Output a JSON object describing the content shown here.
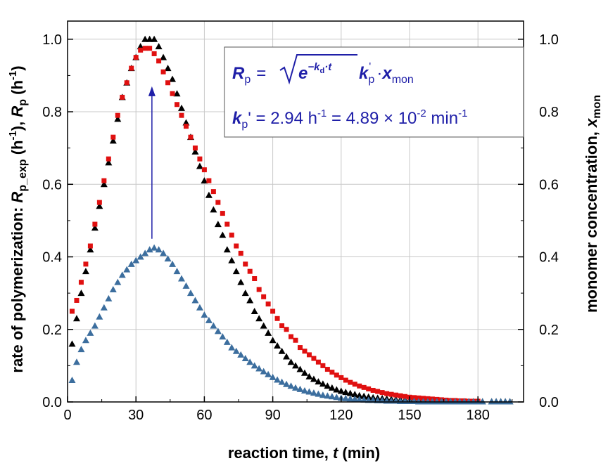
{
  "chart_data": {
    "type": "scatter",
    "title": "",
    "xlabel": "reaction time, t (min)",
    "ylabel_left": "rate of polymerization: R_p_exp (h^-1), R_p (h^-1)",
    "ylabel_right": "monomer concentration, x_mon",
    "xlim": [
      0,
      200
    ],
    "ylim": [
      0,
      1.05
    ],
    "y2lim": [
      0,
      1.05
    ],
    "xticks": [
      "0",
      "30",
      "60",
      "90",
      "120",
      "150",
      "180"
    ],
    "yticks": [
      "0.0",
      "0.2",
      "0.4",
      "0.6",
      "0.8",
      "1.0"
    ],
    "y2ticks": [
      "0.0",
      "0.2",
      "0.4",
      "0.6",
      "0.8",
      "1.0"
    ],
    "grid": true,
    "xlabel_parts": {
      "pre": "reaction time, ",
      "var": "t",
      "post": " (min)"
    },
    "ylabel_left_parts": {
      "pre": "rate of polymerization: ",
      "var1": "R",
      "sub1": "p_exp",
      "mid": " (h",
      "exp": "-1",
      "mid2": "), ",
      "var2": "R",
      "sub2": "p",
      "post": " (h",
      "post_exp": "-1",
      "end": ")"
    },
    "ylabel_right_parts": {
      "pre": "monomer concentration, ",
      "var": "x",
      "sub": "mon"
    },
    "annotation": {
      "eq1": {
        "lhs": "R",
        "lhs_sub": "p",
        "equals": "=",
        "exp_base": "e",
        "exp_sup": "−k",
        "exp_sup_sub": "d",
        "exp_sup_tail": "·t",
        "k": "k",
        "k_sub": "p",
        "k_prime": "'",
        "dot": "·",
        "x": "x",
        "x_sub": "mon"
      },
      "eq2": {
        "k": "k",
        "k_sub": "p",
        "text1": "' = 2.94 h",
        "sup1": "-1",
        "text2": " = 4.89 × 10",
        "sup2": "-2",
        "text3": " min",
        "sup3": "-1"
      }
    },
    "arrow": {
      "x": 37,
      "from_y": 0.45,
      "to_y": 0.87,
      "color": "#1f1fa8"
    },
    "series": [
      {
        "marker": "triangle",
        "color": "#000000",
        "axis": "left",
        "x": [
          2,
          4,
          6,
          8,
          10,
          12,
          14,
          16,
          18,
          20,
          22,
          24,
          26,
          28,
          30,
          32,
          34,
          36,
          38,
          40,
          42,
          44,
          46,
          48,
          50,
          52,
          54,
          56,
          58,
          60,
          62,
          64,
          66,
          68,
          70,
          72,
          74,
          76,
          78,
          80,
          82,
          84,
          86,
          88,
          90,
          92,
          94,
          96,
          98,
          100,
          102,
          104,
          106,
          108,
          110,
          112,
          114,
          116,
          118,
          120,
          122,
          124,
          126,
          128,
          130,
          132,
          134,
          136,
          138,
          140,
          142,
          144,
          146,
          148,
          150,
          152,
          154,
          156,
          158,
          160,
          162,
          164,
          166,
          168,
          170,
          172,
          174,
          176,
          178,
          180,
          182,
          186,
          188,
          190,
          192,
          194
        ],
        "y": [
          0.16,
          0.23,
          0.3,
          0.36,
          0.42,
          0.48,
          0.54,
          0.6,
          0.66,
          0.72,
          0.78,
          0.84,
          0.88,
          0.92,
          0.95,
          0.98,
          1.0,
          1.0,
          1.0,
          0.98,
          0.95,
          0.92,
          0.89,
          0.85,
          0.81,
          0.77,
          0.73,
          0.69,
          0.65,
          0.61,
          0.57,
          0.53,
          0.49,
          0.46,
          0.42,
          0.39,
          0.36,
          0.33,
          0.3,
          0.28,
          0.25,
          0.23,
          0.21,
          0.19,
          0.17,
          0.155,
          0.14,
          0.125,
          0.11,
          0.1,
          0.09,
          0.08,
          0.07,
          0.063,
          0.056,
          0.05,
          0.044,
          0.039,
          0.034,
          0.03,
          0.027,
          0.024,
          0.021,
          0.018,
          0.016,
          0.014,
          0.012,
          0.011,
          0.01,
          0.009,
          0.008,
          0.007,
          0.006,
          0.005,
          0.005,
          0.004,
          0.004,
          0.003,
          0.003,
          0.003,
          0.002,
          0.002,
          0.002,
          0.002,
          0.001,
          0.001,
          0.001,
          0.001,
          0.001,
          0.001,
          0.001,
          0.001,
          0.001,
          0.001,
          0.001,
          0.001
        ]
      },
      {
        "marker": "square",
        "color": "#e01010",
        "axis": "left",
        "x": [
          2,
          4,
          6,
          8,
          10,
          12,
          14,
          16,
          18,
          20,
          22,
          24,
          26,
          28,
          30,
          32,
          34,
          36,
          38,
          40,
          42,
          44,
          46,
          48,
          50,
          52,
          54,
          56,
          58,
          60,
          62,
          64,
          66,
          68,
          70,
          72,
          74,
          76,
          78,
          80,
          82,
          84,
          86,
          88,
          90,
          92,
          94,
          96,
          98,
          100,
          102,
          104,
          106,
          108,
          110,
          112,
          114,
          116,
          118,
          120,
          122,
          124,
          126,
          128,
          130,
          132,
          134,
          136,
          138,
          140,
          142,
          144,
          146,
          148,
          150,
          152,
          154,
          156,
          158,
          160,
          162,
          164,
          166,
          168,
          170,
          172,
          174,
          176,
          178,
          180
        ],
        "y": [
          0.25,
          0.28,
          0.33,
          0.38,
          0.43,
          0.49,
          0.55,
          0.61,
          0.67,
          0.73,
          0.79,
          0.84,
          0.88,
          0.92,
          0.95,
          0.97,
          0.975,
          0.975,
          0.96,
          0.94,
          0.91,
          0.88,
          0.85,
          0.82,
          0.79,
          0.76,
          0.73,
          0.7,
          0.67,
          0.64,
          0.61,
          0.58,
          0.55,
          0.52,
          0.49,
          0.46,
          0.43,
          0.41,
          0.38,
          0.36,
          0.34,
          0.31,
          0.29,
          0.27,
          0.25,
          0.23,
          0.21,
          0.2,
          0.18,
          0.17,
          0.15,
          0.14,
          0.13,
          0.12,
          0.11,
          0.1,
          0.09,
          0.082,
          0.074,
          0.067,
          0.06,
          0.054,
          0.049,
          0.044,
          0.04,
          0.036,
          0.032,
          0.029,
          0.026,
          0.023,
          0.021,
          0.019,
          0.017,
          0.015,
          0.013,
          0.012,
          0.011,
          0.01,
          0.009,
          0.008,
          0.007,
          0.006,
          0.005,
          0.004,
          0.004,
          0.003,
          0.003,
          0.002,
          0.002,
          0.002
        ]
      },
      {
        "marker": "triangle",
        "color": "#3c6e9e",
        "axis": "left",
        "x": [
          2,
          4,
          6,
          8,
          10,
          12,
          14,
          16,
          18,
          20,
          22,
          24,
          26,
          28,
          30,
          32,
          34,
          36,
          38,
          40,
          42,
          44,
          46,
          48,
          50,
          52,
          54,
          56,
          58,
          60,
          62,
          64,
          66,
          68,
          70,
          72,
          74,
          76,
          78,
          80,
          82,
          84,
          86,
          88,
          90,
          92,
          94,
          96,
          98,
          100,
          102,
          104,
          106,
          108,
          110,
          112,
          114,
          116,
          118,
          120,
          122,
          124,
          126,
          128,
          130,
          132,
          134,
          136,
          138,
          140,
          142,
          144,
          146,
          148,
          150,
          152,
          154,
          156,
          158,
          160,
          162,
          164,
          166,
          168,
          170,
          172,
          174,
          176,
          178,
          180,
          182,
          186,
          188,
          190,
          192,
          194
        ],
        "y": [
          0.06,
          0.11,
          0.145,
          0.17,
          0.19,
          0.21,
          0.235,
          0.26,
          0.285,
          0.31,
          0.33,
          0.35,
          0.365,
          0.38,
          0.39,
          0.4,
          0.41,
          0.42,
          0.425,
          0.42,
          0.41,
          0.395,
          0.38,
          0.36,
          0.34,
          0.32,
          0.3,
          0.28,
          0.26,
          0.24,
          0.225,
          0.21,
          0.195,
          0.18,
          0.165,
          0.15,
          0.14,
          0.13,
          0.12,
          0.11,
          0.1,
          0.092,
          0.084,
          0.076,
          0.068,
          0.061,
          0.055,
          0.049,
          0.044,
          0.039,
          0.035,
          0.031,
          0.028,
          0.025,
          0.022,
          0.019,
          0.017,
          0.015,
          0.013,
          0.011,
          0.01,
          0.009,
          0.008,
          0.007,
          0.006,
          0.005,
          0.005,
          0.004,
          0.004,
          0.003,
          0.003,
          0.003,
          0.002,
          0.002,
          0.002,
          0.002,
          0.001,
          0.001,
          0.001,
          0.001,
          0.001,
          0.001,
          0.001,
          0.001,
          0.001,
          0.001,
          0.001,
          0.001,
          0.001,
          0.001,
          0.001,
          0.001,
          0.001,
          0.001,
          0.001,
          0.001
        ]
      }
    ]
  }
}
